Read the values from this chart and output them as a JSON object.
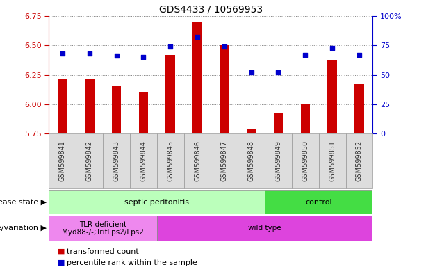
{
  "title": "GDS4433 / 10569953",
  "samples": [
    "GSM599841",
    "GSM599842",
    "GSM599843",
    "GSM599844",
    "GSM599845",
    "GSM599846",
    "GSM599847",
    "GSM599848",
    "GSM599849",
    "GSM599850",
    "GSM599851",
    "GSM599852"
  ],
  "transformed_count": [
    6.22,
    6.22,
    6.15,
    6.1,
    6.42,
    6.7,
    6.5,
    5.79,
    5.92,
    6.0,
    6.38,
    6.17
  ],
  "percentile_rank": [
    68,
    68,
    66,
    65,
    74,
    82,
    74,
    52,
    52,
    67,
    73,
    67
  ],
  "ylim_left": [
    5.75,
    6.75
  ],
  "ylim_right": [
    0,
    100
  ],
  "yticks_left": [
    5.75,
    6.0,
    6.25,
    6.5,
    6.75
  ],
  "yticks_right": [
    0,
    25,
    50,
    75,
    100
  ],
  "ytick_labels_right": [
    "0",
    "25",
    "50",
    "75",
    "100%"
  ],
  "bar_color": "#cc0000",
  "dot_color": "#0000cc",
  "bar_bottom": 5.75,
  "disease_state_groups": [
    {
      "label": "septic peritonitis",
      "start": 0,
      "end": 8,
      "color": "#bbffbb"
    },
    {
      "label": "control",
      "start": 8,
      "end": 12,
      "color": "#44dd44"
    }
  ],
  "genotype_groups": [
    {
      "label": "TLR-deficient\nMyd88-/-;TrifLps2/Lps2",
      "start": 0,
      "end": 4,
      "color": "#ee88ee"
    },
    {
      "label": "wild type",
      "start": 4,
      "end": 12,
      "color": "#dd44dd"
    }
  ],
  "legend_items": [
    {
      "label": "transformed count",
      "color": "#cc0000"
    },
    {
      "label": "percentile rank within the sample",
      "color": "#0000cc"
    }
  ],
  "row_labels": [
    "disease state",
    "genotype/variation"
  ],
  "xticklabel_color": "#333333",
  "left_axis_color": "#cc0000",
  "right_axis_color": "#0000cc",
  "xtick_bg_color": "#dddddd"
}
